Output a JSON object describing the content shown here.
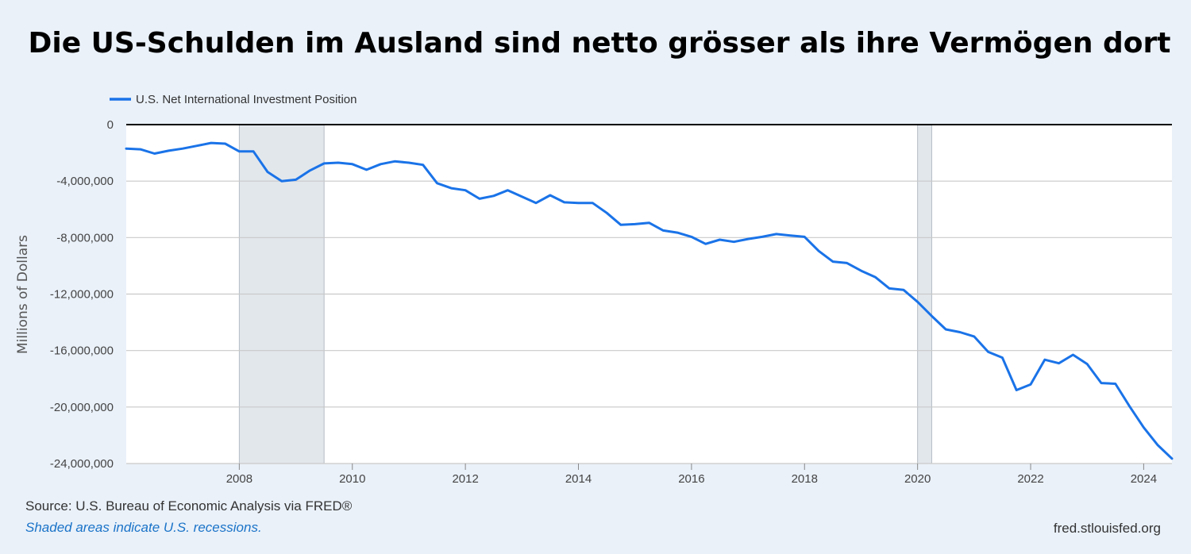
{
  "title": "Die US-Schulden im Ausland sind netto grösser als ihre Vermögen dort",
  "footer": {
    "source": "Source: U.S. Bureau of Economic Analysis via FRED®",
    "note": "Shaded areas indicate U.S. recessions.",
    "site": "fred.stlouisfed.org"
  },
  "chart_data": {
    "type": "line",
    "ylabel": "Millions of Dollars",
    "ylim": [
      -24000000,
      0
    ],
    "xlim": [
      2006.0,
      2024.5
    ],
    "y_ticks": [
      0,
      -4000000,
      -8000000,
      -12000000,
      -16000000,
      -20000000,
      -24000000
    ],
    "y_tick_labels": [
      "0",
      "-4,000,000",
      "-8,000,000",
      "-12,000,000",
      "-16,000,000",
      "-20,000,000",
      "-24,000,000"
    ],
    "x_ticks": [
      2008,
      2010,
      2012,
      2014,
      2016,
      2018,
      2020,
      2022,
      2024
    ],
    "x_tick_labels": [
      "2008",
      "2010",
      "2012",
      "2014",
      "2016",
      "2018",
      "2020",
      "2022",
      "2024"
    ],
    "legend": "top-left",
    "grid": true,
    "recessions": [
      [
        2008.0,
        2009.5
      ],
      [
        2020.0,
        2020.25
      ]
    ],
    "colors": {
      "line": "#1a73e8",
      "recession": "#e2e7ec",
      "axis_text": "#555555"
    },
    "series": [
      {
        "name": "U.S. Net International Investment Position",
        "x": [
          2006.0,
          2006.25,
          2006.5,
          2006.75,
          2007.0,
          2007.25,
          2007.5,
          2007.75,
          2008.0,
          2008.25,
          2008.5,
          2008.75,
          2009.0,
          2009.25,
          2009.5,
          2009.75,
          2010.0,
          2010.25,
          2010.5,
          2010.75,
          2011.0,
          2011.25,
          2011.5,
          2011.75,
          2012.0,
          2012.25,
          2012.5,
          2012.75,
          2013.0,
          2013.25,
          2013.5,
          2013.75,
          2014.0,
          2014.25,
          2014.5,
          2014.75,
          2015.0,
          2015.25,
          2015.5,
          2015.75,
          2016.0,
          2016.25,
          2016.5,
          2016.75,
          2017.0,
          2017.25,
          2017.5,
          2017.75,
          2018.0,
          2018.25,
          2018.5,
          2018.75,
          2019.0,
          2019.25,
          2019.5,
          2019.75,
          2020.0,
          2020.25,
          2020.5,
          2020.75,
          2021.0,
          2021.25,
          2021.5,
          2021.75,
          2022.0,
          2022.25,
          2022.5,
          2022.75,
          2023.0,
          2023.25,
          2023.5,
          2023.75,
          2024.0,
          2024.25,
          2024.5
        ],
        "values": [
          -1700000,
          -1750000,
          -2050000,
          -1850000,
          -1700000,
          -1500000,
          -1300000,
          -1350000,
          -1900000,
          -1900000,
          -3350000,
          -4000000,
          -3900000,
          -3250000,
          -2750000,
          -2700000,
          -2800000,
          -3200000,
          -2800000,
          -2600000,
          -2700000,
          -2850000,
          -4150000,
          -4500000,
          -4650000,
          -5250000,
          -5050000,
          -4650000,
          -5100000,
          -5550000,
          -5000000,
          -5500000,
          -5550000,
          -5550000,
          -6250000,
          -7100000,
          -7050000,
          -6950000,
          -7500000,
          -7650000,
          -7950000,
          -8450000,
          -8150000,
          -8300000,
          -8100000,
          -7950000,
          -7750000,
          -7850000,
          -7950000,
          -8950000,
          -9700000,
          -9800000,
          -10350000,
          -10800000,
          -11600000,
          -11700000,
          -12550000,
          -13550000,
          -14500000,
          -14700000,
          -15000000,
          -16100000,
          -16500000,
          -18800000,
          -18400000,
          -16650000,
          -16900000,
          -16300000,
          -16950000,
          -18300000,
          -18350000,
          -19950000,
          -21450000,
          -22700000,
          -23650000
        ]
      }
    ]
  }
}
